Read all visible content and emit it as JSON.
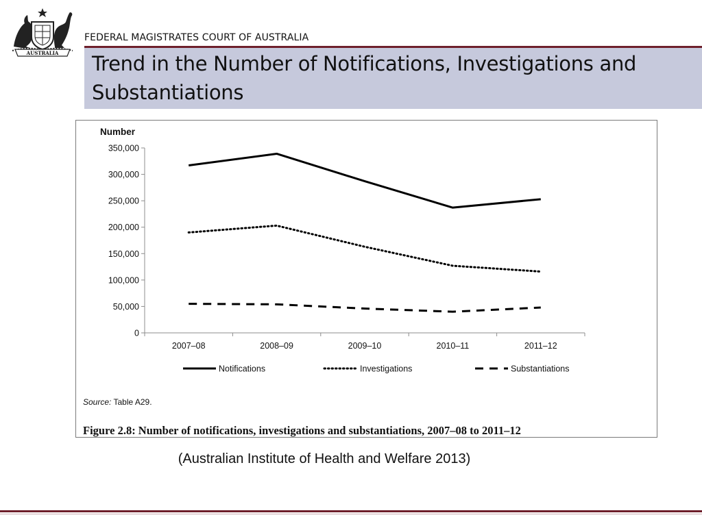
{
  "header": {
    "court_name": "FEDERAL MAGISTRATES COURT OF AUSTRALIA",
    "crest_text": "AUSTRALIA",
    "title": "Trend in the Number of Notifications, Investigations and Substantiations",
    "accent_color": "#6e1f2b",
    "banner_color": "#c6c9dc"
  },
  "chart_data": {
    "type": "line",
    "ylabel": "Number",
    "xlabel": "",
    "categories": [
      "2007–08",
      "2008–09",
      "2009–10",
      "2010–11",
      "2011–12"
    ],
    "ylim": [
      0,
      350000
    ],
    "yticks": [
      0,
      50000,
      100000,
      150000,
      200000,
      250000,
      300000,
      350000
    ],
    "ytick_labels": [
      "0",
      "50,000",
      "100,000",
      "150,000",
      "200,000",
      "250,000",
      "300,000",
      "350,000"
    ],
    "series": [
      {
        "name": "Notifications",
        "style": "solid",
        "color": "#000000",
        "values": [
          317000,
          339000,
          287000,
          237000,
          253000
        ]
      },
      {
        "name": "Investigations",
        "style": "dotted",
        "color": "#000000",
        "values": [
          190000,
          203000,
          163000,
          127000,
          116000
        ]
      },
      {
        "name": "Substantiations",
        "style": "dashed",
        "color": "#000000",
        "values": [
          55000,
          54000,
          46000,
          40000,
          48000
        ]
      }
    ],
    "grid": false,
    "legend_position": "bottom",
    "source_label": "Source:",
    "source_text": "Table A29.",
    "caption": "Figure 2.8: Number of notifications, investigations and substantiations, 2007–08 to 2011–12"
  },
  "citation": "(Australian Institute of Health and Welfare 2013)"
}
